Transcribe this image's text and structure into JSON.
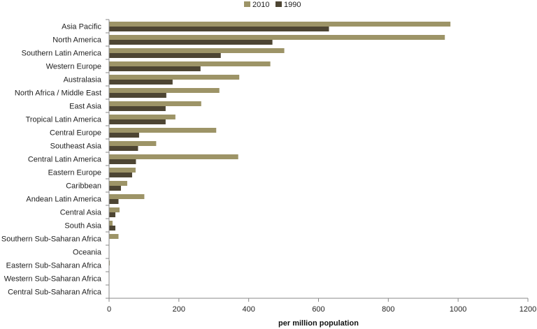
{
  "chart_data": {
    "type": "bar",
    "orientation": "horizontal",
    "categories": [
      "Asia Pacific",
      "North America",
      "Southern Latin America",
      "Western Europe",
      "Australasia",
      "North Africa / Middle East",
      "East Asia",
      "Tropical Latin America",
      "Central Europe",
      "Southeast Asia",
      "Central Latin America",
      "Eastern Europe",
      "Caribbean",
      "Andean Latin America",
      "Central Asia",
      "South Asia",
      "Southern Sub-Saharan Africa",
      "Oceania",
      "Eastern Sub-Saharan Africa",
      "Western Sub-Saharan Africa",
      "Central Sub-Saharan Africa"
    ],
    "series": [
      {
        "name": "2010",
        "color": "#9d9467",
        "values": [
          978,
          962,
          502,
          462,
          373,
          316,
          264,
          190,
          307,
          135,
          370,
          76,
          52,
          101,
          30,
          10,
          27,
          0,
          2,
          1,
          0
        ]
      },
      {
        "name": "1990",
        "color": "#4d4533",
        "values": [
          630,
          468,
          320,
          262,
          182,
          164,
          162,
          162,
          86,
          83,
          77,
          66,
          34,
          27,
          18,
          18,
          0,
          0,
          0,
          0,
          0
        ]
      }
    ],
    "xlabel": "per million population",
    "ylabel": "",
    "xlim": [
      0,
      1200
    ],
    "xticks": [
      0,
      200,
      400,
      600,
      800,
      1000,
      1200
    ],
    "grid": false,
    "legend_position": "top-center"
  }
}
